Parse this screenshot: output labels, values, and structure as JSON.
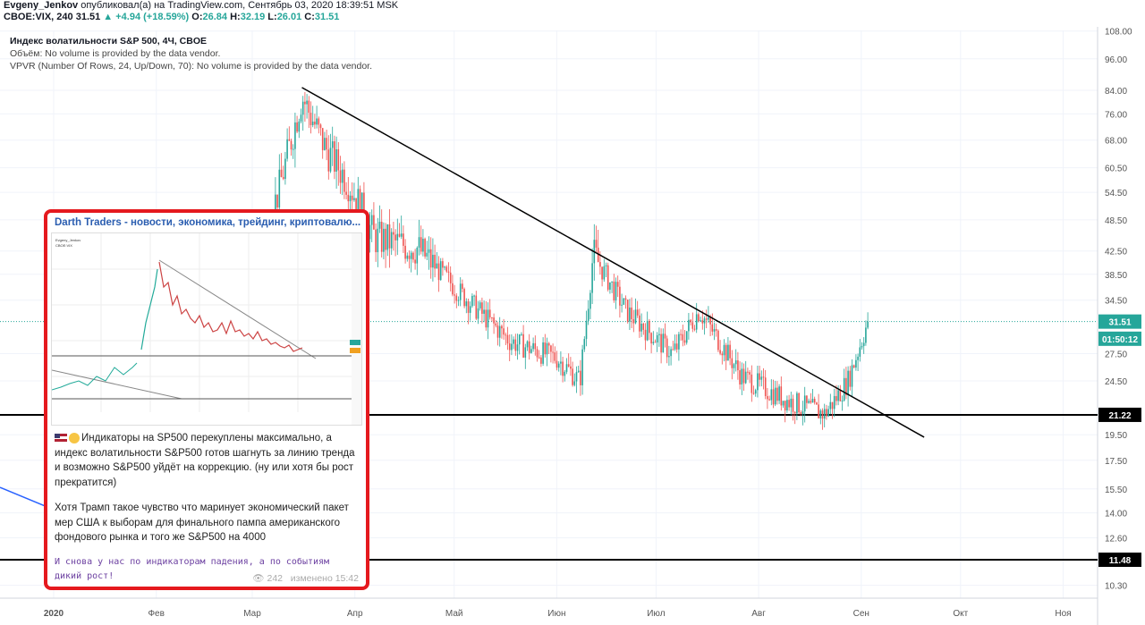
{
  "header": {
    "author": "Evgeny_Jenkov",
    "published": "опубликовал(а) на TradingView.com, Сентябрь 03, 2020 18:39:51 MSK",
    "symbol": "CBOE:VIX, 240",
    "last": "31.51",
    "change": "+4.94 (+18.59%)",
    "o_label": "O:",
    "o": "26.84",
    "h_label": "H:",
    "h": "32.19",
    "l_label": "L:",
    "l": "26.01",
    "c_label": "C:",
    "c": "31.51"
  },
  "legend": {
    "title": "Индекс волатильности S&P 500, 4Ч, CBOE",
    "volume": "Объём: No volume is provided by the data vendor.",
    "vpvr": "VPVR (Number Of Rows, 24, Up/Down, 70): No volume is provided by the data vendor."
  },
  "telegram": {
    "channel": "Darth Traders - новости, экономика, трейдинг, криптовалю...",
    "paragraph1": "Индикаторы на SP500 перекуплены максимально, а индекс волатильности S&P500 готов шагнуть за линию тренда и возможно S&P500 уйдёт на коррекцию. (ну или хотя бы рост прекратится)",
    "paragraph2": "Хотя Трамп такое чувство что маринует экономический пакет мер США  к выборам для финального пампа американского фондового рынка и того же S&P500 на 4000",
    "mono": "И снова у нас по индикаторам падения, а по событиям дикий рост!",
    "views": "242",
    "edited": "изменено 15:42",
    "flag_icon": "us-flag-icon",
    "emoji_icon": "thinking-face-icon"
  },
  "chart_data": {
    "type": "candlestick",
    "title": "Индекс волатильности S&P 500, 4Ч, CBOE",
    "y_ticks": [
      108.0,
      96.0,
      84.0,
      76.0,
      68.0,
      60.5,
      54.5,
      48.5,
      42.5,
      38.5,
      34.5,
      27.5,
      24.5,
      19.5,
      17.5,
      15.5,
      14.0,
      12.6,
      10.3
    ],
    "ylim": [
      9.5,
      110
    ],
    "x_ticks": [
      "2020",
      "Фев",
      "Мар",
      "Апр",
      "Май",
      "Июн",
      "Июл",
      "Авг",
      "Сен",
      "Окт",
      "Ноя"
    ],
    "price_labels": [
      {
        "text": "31.51",
        "value": 31.51,
        "color": "#26a69a"
      },
      {
        "text": "01:50:12",
        "value": 29.3,
        "color": "#26a69a"
      },
      {
        "text": "21.22",
        "value": 21.22,
        "color": "#000000"
      },
      {
        "text": "11.48",
        "value": 11.48,
        "color": "#000000"
      }
    ],
    "horizontal_lines": [
      21.22,
      11.48
    ],
    "trendline": {
      "from": [
        "2020-03-16",
        85.0
      ],
      "to": [
        "2020-09-20",
        19.3
      ]
    },
    "series_approx": [
      [
        "2020-01-02",
        13.5
      ],
      [
        "2020-01-20",
        12.6
      ],
      [
        "2020-02-10",
        15.0
      ],
      [
        "2020-02-24",
        27.0
      ],
      [
        "2020-03-02",
        40.0
      ],
      [
        "2020-03-09",
        55.0
      ],
      [
        "2020-03-16",
        82.0
      ],
      [
        "2020-03-23",
        66.0
      ],
      [
        "2020-03-30",
        57.0
      ],
      [
        "2020-04-07",
        45.0
      ],
      [
        "2020-04-20",
        43.0
      ],
      [
        "2020-05-04",
        35.0
      ],
      [
        "2020-05-18",
        29.0
      ],
      [
        "2020-06-01",
        27.0
      ],
      [
        "2020-06-08",
        24.5
      ],
      [
        "2020-06-12",
        42.0
      ],
      [
        "2020-06-22",
        33.0
      ],
      [
        "2020-07-06",
        27.5
      ],
      [
        "2020-07-14",
        33.0
      ],
      [
        "2020-07-27",
        25.0
      ],
      [
        "2020-08-10",
        22.5
      ],
      [
        "2020-08-21",
        21.3
      ],
      [
        "2020-08-28",
        24.5
      ],
      [
        "2020-09-03",
        31.51
      ]
    ]
  }
}
